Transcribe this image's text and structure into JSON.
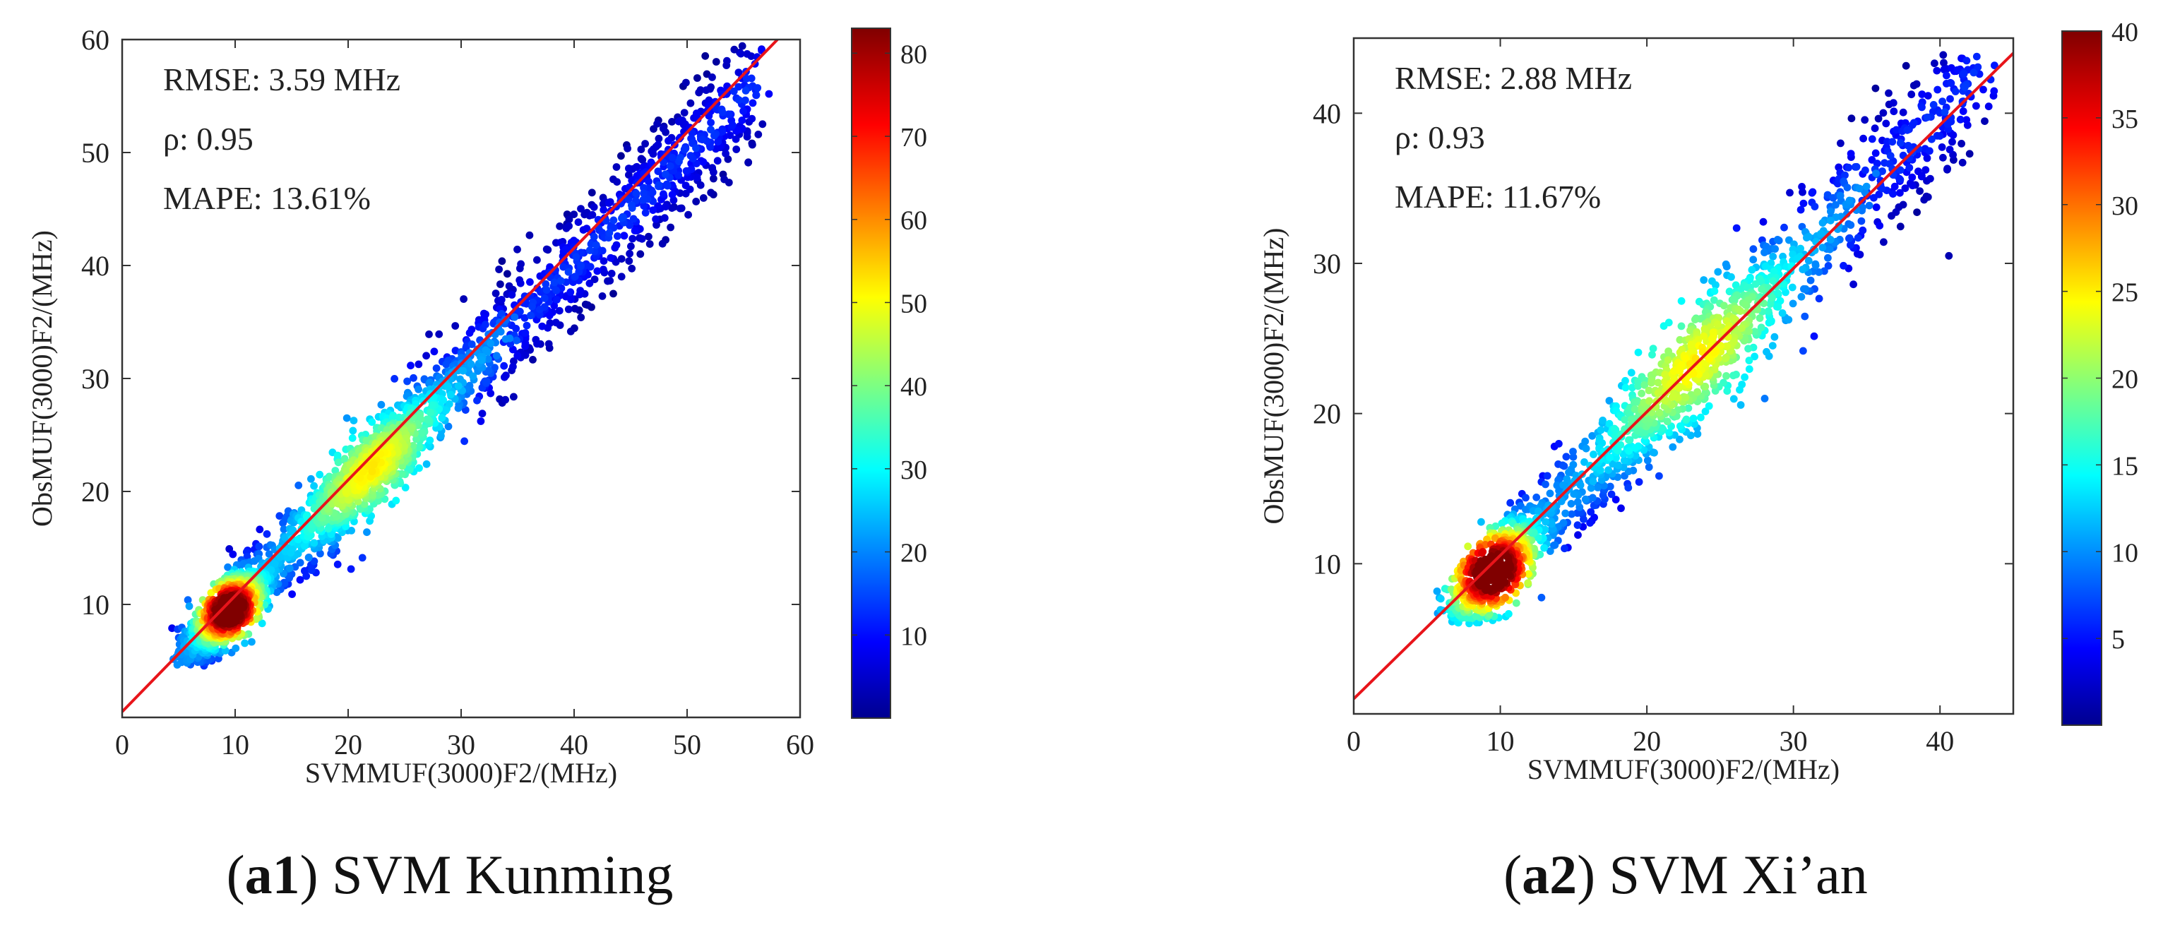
{
  "chart_data": [
    {
      "type": "scatter",
      "subtype": "density-colored scatter with 1:1 line and colorbar",
      "caption_id": "a1",
      "caption_text": "SVM Kunming",
      "xlabel": "SVMMUF(3000)F2/(MHz)",
      "ylabel": "ObsMUF(3000)F2/(MHz)",
      "xlim": [
        0,
        60
      ],
      "ylim": [
        0,
        60
      ],
      "xticks": [
        "0",
        "10",
        "20",
        "30",
        "40",
        "50",
        "60"
      ],
      "yticks": [
        "10",
        "20",
        "30",
        "40",
        "50",
        "60"
      ],
      "stats": [
        "RMSE: 3.59 MHz",
        "ρ: 0.95",
        "MAPE: 13.61%"
      ],
      "colorbar": {
        "min": 0,
        "max": 83,
        "ticks": [
          "10",
          "20",
          "30",
          "40",
          "50",
          "60",
          "70",
          "80"
        ]
      },
      "fit_line": {
        "color": "#e8141a",
        "x": [
          0,
          58
        ],
        "y": [
          0.5,
          60
        ]
      },
      "cloud": {
        "x_range": [
          5,
          56
        ],
        "y_range": [
          4.5,
          60
        ],
        "peak_density_at": [
          9.5,
          9.5
        ],
        "secondary_density_at": [
          22,
          22
        ],
        "spread_sd_mhz": 3.0
      }
    },
    {
      "type": "scatter",
      "subtype": "density-colored scatter with 1:1 line and colorbar",
      "caption_id": "a2",
      "caption_text": "SVM Xi’an",
      "xlabel": "SVMMUF(3000)F2/(MHz)",
      "ylabel": "ObsMUF(3000)F2/(MHz)",
      "xlim": [
        0,
        45
      ],
      "ylim": [
        0,
        45
      ],
      "xticks": [
        "0",
        "10",
        "20",
        "30",
        "40"
      ],
      "yticks": [
        "10",
        "20",
        "30",
        "40"
      ],
      "stats": [
        "RMSE: 2.88 MHz",
        "ρ: 0.93",
        "MAPE: 11.67%"
      ],
      "colorbar": {
        "min": 0,
        "max": 40,
        "ticks": [
          "5",
          "10",
          "15",
          "20",
          "25",
          "30",
          "35",
          "40"
        ]
      },
      "fit_line": {
        "color": "#e8141a",
        "x": [
          0,
          45
        ],
        "y": [
          1,
          44
        ]
      },
      "cloud": {
        "x_range": [
          6.5,
          43
        ],
        "y_range": [
          6,
          44
        ],
        "peak_density_at": [
          9.5,
          9.5
        ],
        "secondary_density_at": [
          23,
          24
        ],
        "spread_sd_mhz": 2.6
      }
    }
  ]
}
